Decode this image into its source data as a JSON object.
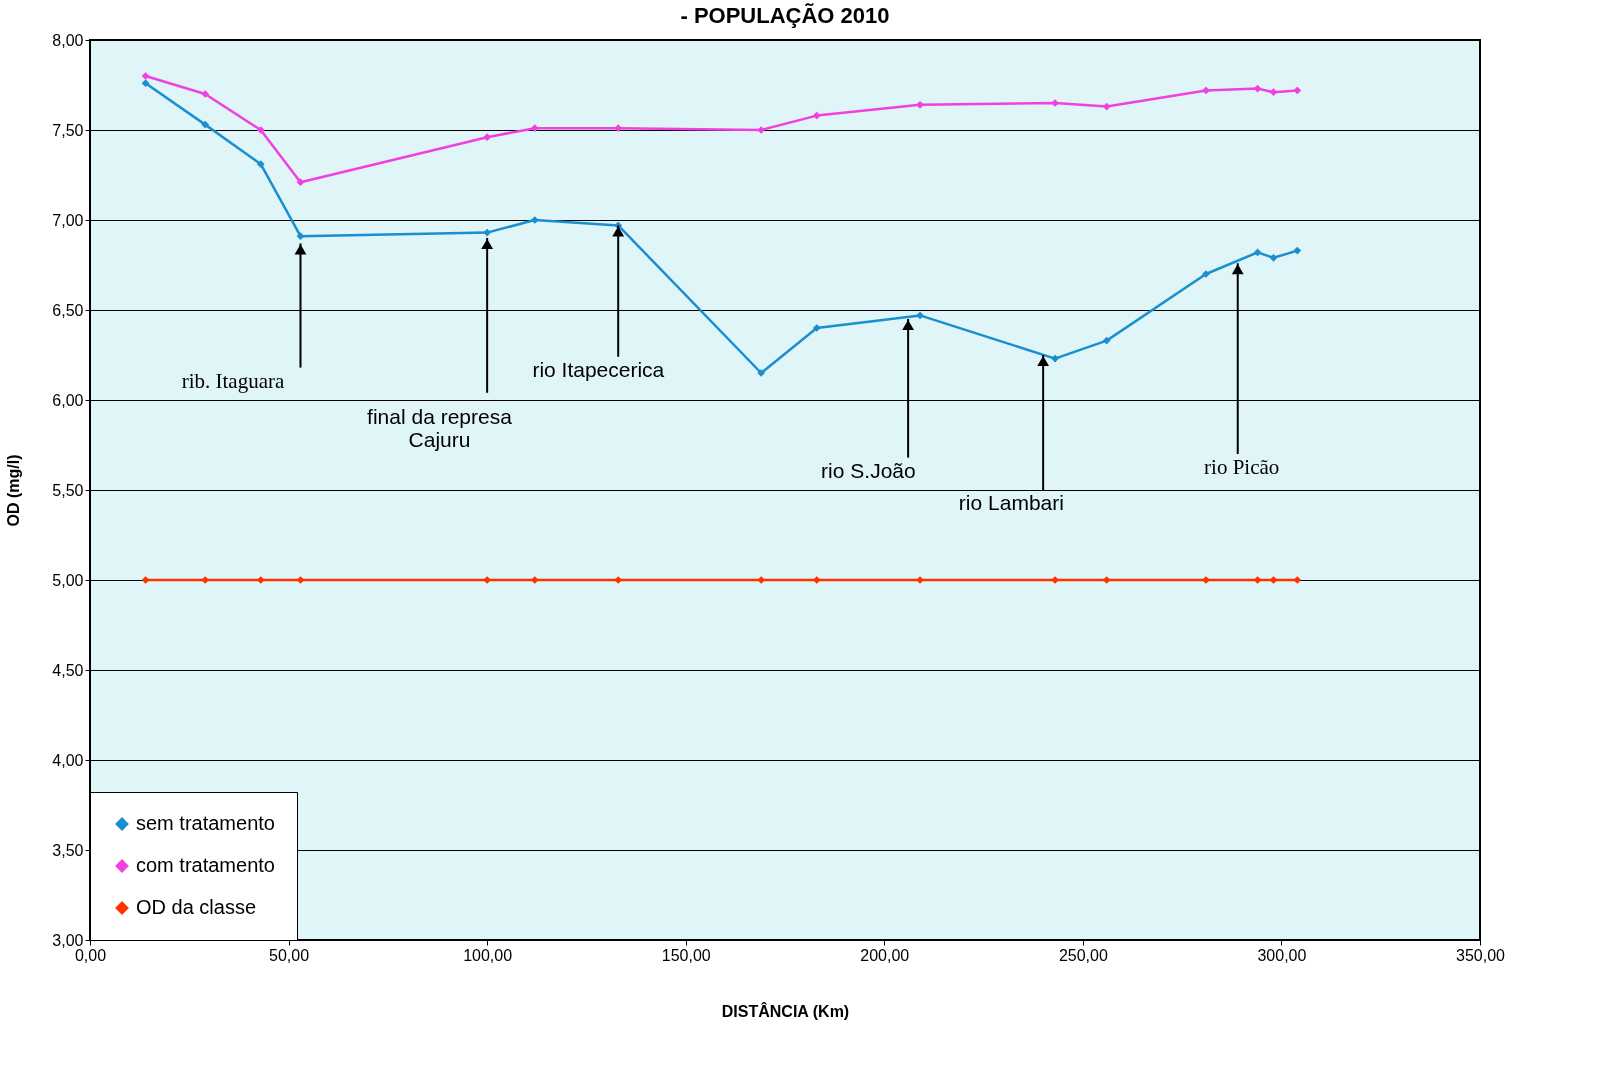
{
  "chart_data": {
    "type": "line",
    "title": "- POPULAÇÃO 2010",
    "xlabel": "DISTÂNCIA (Km)",
    "ylabel": "OD (mg/l)",
    "x": [
      14,
      29,
      43,
      53,
      100,
      112,
      133,
      169,
      183,
      209,
      243,
      256,
      281,
      294,
      298,
      304
    ],
    "series": [
      {
        "name": "sem tratamento",
        "color": "#1a8fd0",
        "values": [
          7.76,
          7.53,
          7.31,
          6.91,
          6.93,
          7.0,
          6.97,
          6.15,
          6.4,
          6.47,
          6.23,
          6.33,
          6.7,
          6.82,
          6.79,
          6.83
        ]
      },
      {
        "name": "com tratamento",
        "color": "#f040e0",
        "values": [
          7.8,
          7.7,
          7.5,
          7.21,
          7.46,
          7.51,
          7.51,
          7.5,
          7.58,
          7.64,
          7.65,
          7.63,
          7.72,
          7.73,
          7.71,
          7.72
        ]
      },
      {
        "name": "OD da classe",
        "color": "#ff3300",
        "values": [
          5,
          5,
          5,
          5,
          5,
          5,
          5,
          5,
          5,
          5,
          5,
          5,
          5,
          5,
          5,
          5
        ]
      }
    ],
    "xlim": [
      0,
      350
    ],
    "xticks": [
      {
        "value": 0,
        "label": "0,00"
      },
      {
        "value": 50,
        "label": "50,00"
      },
      {
        "value": 100,
        "label": "100,00"
      },
      {
        "value": 150,
        "label": "150,00"
      },
      {
        "value": 200,
        "label": "200,00"
      },
      {
        "value": 250,
        "label": "250,00"
      },
      {
        "value": 300,
        "label": "300,00"
      },
      {
        "value": 350,
        "label": "350,00"
      }
    ],
    "ylim": [
      3,
      8
    ],
    "yticks": [
      {
        "value": 3,
        "label": "3,00"
      },
      {
        "value": 3.5,
        "label": "3,50"
      },
      {
        "value": 4,
        "label": "4,00"
      },
      {
        "value": 4.5,
        "label": "4,50"
      },
      {
        "value": 5,
        "label": "5,00"
      },
      {
        "value": 5.5,
        "label": "5,50"
      },
      {
        "value": 6,
        "label": "6,00"
      },
      {
        "value": 6.5,
        "label": "6,50"
      },
      {
        "value": 7,
        "label": "7,00"
      },
      {
        "value": 7.5,
        "label": "7,50"
      },
      {
        "value": 8,
        "label": "8,00"
      }
    ],
    "annotations": [
      {
        "text": "rib. Itaguara",
        "x": 53,
        "y": 6.87
      },
      {
        "text": "final da represa\nCajuru",
        "x": 100,
        "y": 6.9
      },
      {
        "text": "rio Itapecerica",
        "x": 133,
        "y": 6.97
      },
      {
        "text": "rio S.João",
        "x": 206,
        "y": 6.45
      },
      {
        "text": "rio Lambari",
        "x": 240,
        "y": 6.25
      },
      {
        "text": "rio Picão",
        "x": 289,
        "y": 6.76
      }
    ],
    "grid": "y",
    "legend": "bottom left",
    "marker": "diamond",
    "line_style": "solid"
  }
}
